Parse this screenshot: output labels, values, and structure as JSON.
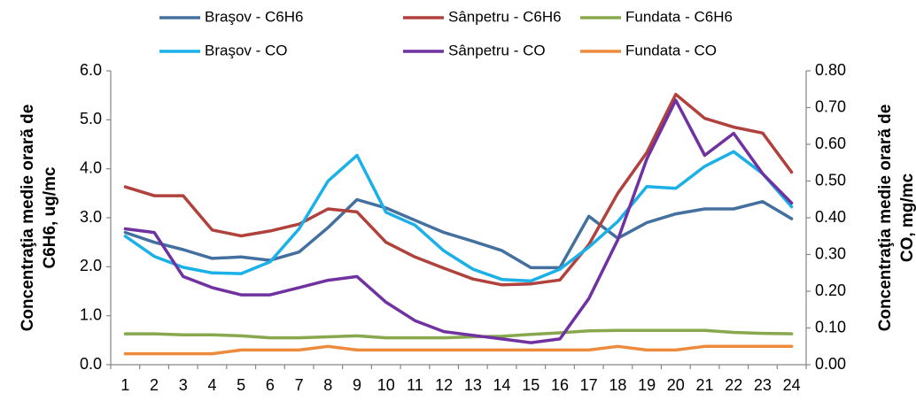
{
  "chart_data": {
    "type": "line",
    "categories": [
      1,
      2,
      3,
      4,
      5,
      6,
      7,
      8,
      9,
      10,
      11,
      12,
      13,
      14,
      15,
      16,
      17,
      18,
      19,
      20,
      21,
      22,
      23,
      24
    ],
    "y_label": [
      "Concentraţia medie orară de",
      "C6H6, ug/mc"
    ],
    "y2_label": [
      "Concentraţia medie orară de",
      "CO, mg/mc"
    ],
    "ylim": [
      0,
      6
    ],
    "yticks": [
      {
        "value": 0,
        "label": "0.0"
      },
      {
        "value": 1,
        "label": "1.0"
      },
      {
        "value": 2,
        "label": "2.0"
      },
      {
        "value": 3,
        "label": "3.0"
      },
      {
        "value": 4,
        "label": "4.0"
      },
      {
        "value": 5,
        "label": "5.0"
      },
      {
        "value": 6,
        "label": "6.0"
      }
    ],
    "y2lim": [
      0,
      0.8
    ],
    "y2ticks": [
      {
        "value": 0,
        "label": "0.00"
      },
      {
        "value": 0.1,
        "label": "0.10"
      },
      {
        "value": 0.2,
        "label": "0.20"
      },
      {
        "value": 0.3,
        "label": "0.30"
      },
      {
        "value": 0.4,
        "label": "0.40"
      },
      {
        "value": 0.5,
        "label": "0.50"
      },
      {
        "value": 0.6,
        "label": "0.60"
      },
      {
        "value": 0.7,
        "label": "0.70"
      },
      {
        "value": 0.8,
        "label": "0.80"
      }
    ],
    "legend": "top",
    "series": [
      {
        "name": "Braşov - C6H6",
        "color": "#44709f",
        "values": [
          2.7,
          2.5,
          2.35,
          2.17,
          2.2,
          2.13,
          2.3,
          2.8,
          3.37,
          3.2,
          2.95,
          2.7,
          2.52,
          2.33,
          1.98,
          1.98,
          3.03,
          2.58,
          2.9,
          3.08,
          3.18,
          3.18,
          3.33,
          2.98
        ]
      },
      {
        "name": "Sânpetru - C6H6",
        "color": "#b0413c",
        "values": [
          3.63,
          3.45,
          3.45,
          2.75,
          2.63,
          2.73,
          2.87,
          3.18,
          3.12,
          2.5,
          2.2,
          1.97,
          1.75,
          1.63,
          1.65,
          1.73,
          2.45,
          3.5,
          4.33,
          5.52,
          5.03,
          4.85,
          4.73,
          3.93
        ]
      },
      {
        "name": "Fundata - C6H6",
        "color": "#88a84e",
        "values": [
          0.63,
          0.63,
          0.61,
          0.61,
          0.59,
          0.55,
          0.55,
          0.57,
          0.59,
          0.55,
          0.55,
          0.55,
          0.57,
          0.58,
          0.62,
          0.65,
          0.69,
          0.7,
          0.7,
          0.7,
          0.7,
          0.66,
          0.64,
          0.63
        ]
      },
      {
        "name": "Braşov - CO",
        "color": "#1bb0e8",
        "axis": "y2",
        "values": [
          0.35,
          0.295,
          0.265,
          0.25,
          0.248,
          0.28,
          0.37,
          0.5,
          0.57,
          0.415,
          0.38,
          0.31,
          0.26,
          0.232,
          0.228,
          0.26,
          0.32,
          0.39,
          0.485,
          0.48,
          0.54,
          0.58,
          0.52,
          0.43
        ]
      },
      {
        "name": "Sânpetru - CO",
        "color": "#7032a0",
        "axis": "y2",
        "values": [
          0.37,
          0.36,
          0.24,
          0.21,
          0.19,
          0.19,
          0.21,
          0.23,
          0.24,
          0.17,
          0.12,
          0.09,
          0.08,
          0.07,
          0.06,
          0.07,
          0.18,
          0.34,
          0.56,
          0.72,
          0.57,
          0.63,
          0.52,
          0.44
        ]
      },
      {
        "name": "Fundata - CO",
        "color": "#ee8a3c",
        "axis": "y2",
        "values": [
          0.03,
          0.03,
          0.03,
          0.03,
          0.04,
          0.04,
          0.04,
          0.05,
          0.04,
          0.04,
          0.04,
          0.04,
          0.04,
          0.04,
          0.04,
          0.04,
          0.04,
          0.05,
          0.04,
          0.04,
          0.05,
          0.05,
          0.05,
          0.05
        ]
      }
    ]
  }
}
